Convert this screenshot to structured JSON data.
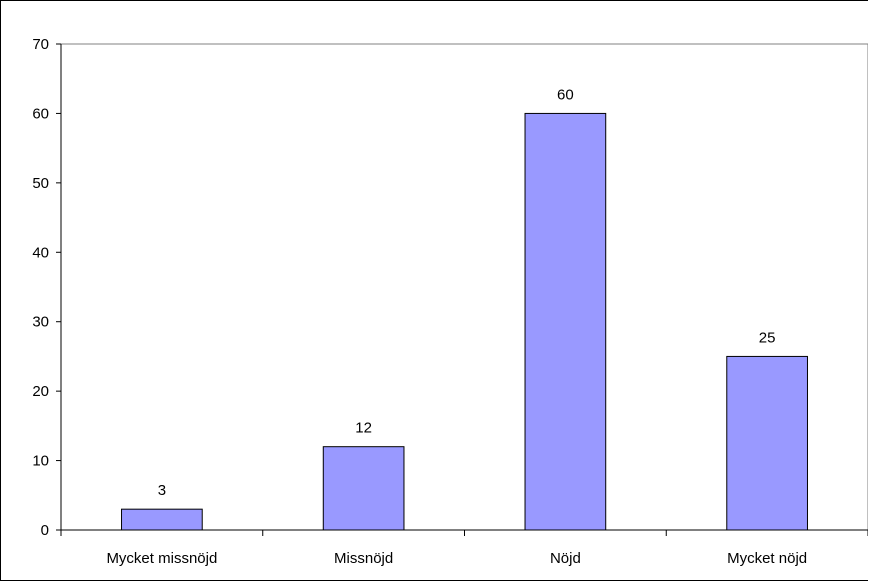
{
  "chart_data": {
    "type": "bar",
    "categories": [
      "Mycket missnöjd",
      "Missnöjd",
      "Nöjd",
      "Mycket nöjd"
    ],
    "values": [
      3,
      12,
      60,
      25
    ],
    "data_labels": [
      "3",
      "12",
      "60",
      "25"
    ],
    "yticks": [
      "0",
      "10",
      "20",
      "30",
      "40",
      "50",
      "60",
      "70"
    ],
    "ylim": [
      0,
      70
    ],
    "bar_color": "#9999ff",
    "grid": false,
    "legend": "none"
  }
}
